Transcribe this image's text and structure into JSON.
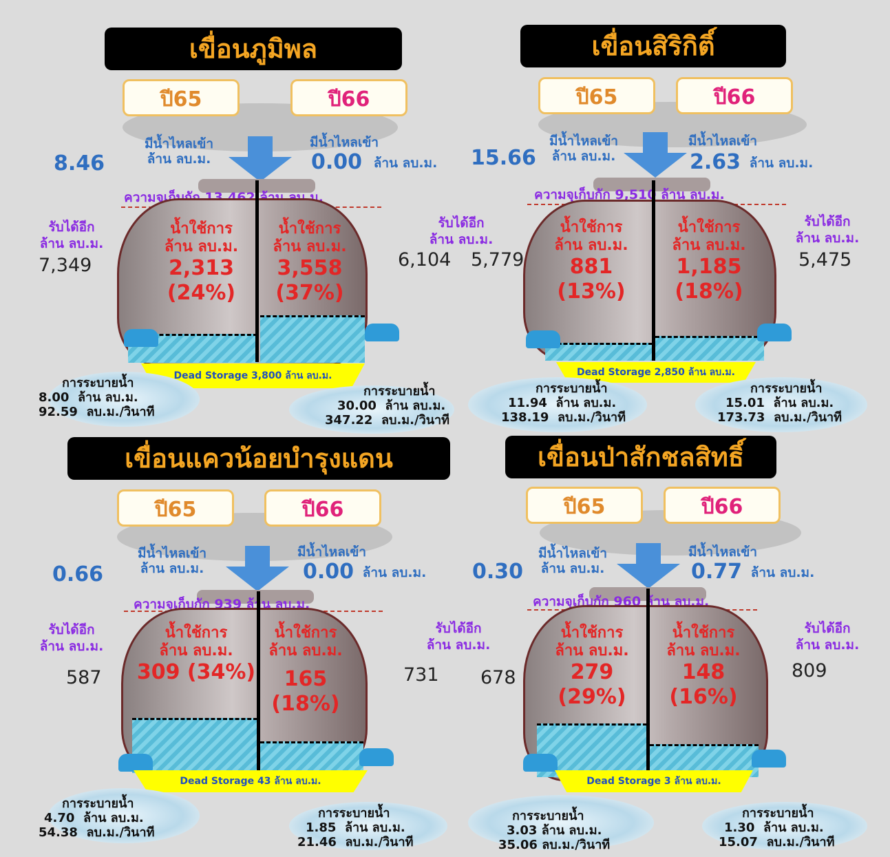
{
  "panels": [
    {
      "title": "เขื่อนภูมิพล",
      "year_left": "ปี65",
      "year_right": "ปี66",
      "inflow_label": "มีน้ำไหลเข้า",
      "unit": "ล้าน ลบ.ม.",
      "inflow_left": "8.46",
      "inflow_right": "0.00",
      "capacity_text": "ความจุเก็บกัก 13,462 ล้าน ลบ.ม.",
      "use_label": "น้ำใช้การ",
      "use_left_value": "2,313",
      "use_left_pct": "(24%)",
      "use_right_value": "3,558",
      "use_right_pct": "(37%)",
      "receive_label": "รับได้อีก",
      "receive_left": "7,349",
      "receive_right": "6,104",
      "dead_storage": "Dead Storage 3,800 ล้าน ลบ.ม.",
      "release_label": "การระบายน้ำ",
      "release_left_mcm": "8.00",
      "release_left_cms": "92.59",
      "release_right_mcm": "30.00",
      "release_right_cms": "347.22",
      "cms_unit": "ลบ.ม./วินาที"
    },
    {
      "title": "เขื่อนสิริกิติ์",
      "year_left": "ปี65",
      "year_right": "ปี66",
      "inflow_label": "มีน้ำไหลเข้า",
      "unit": "ล้าน ลบ.ม.",
      "inflow_left": "15.66",
      "inflow_right": "2.63",
      "capacity_text": "ความจุเก็บกัก 9,510 ล้าน ลบ.ม.",
      "use_label": "น้ำใช้การ",
      "use_left_value": "881 (13%)",
      "use_left_pct": "",
      "use_right_value": "1,185",
      "use_right_pct": "(18%)",
      "receive_label": "รับได้อีก",
      "receive_left": "5,779",
      "receive_right": "5,475",
      "dead_storage": "Dead Storage 2,850 ล้าน ลบ.ม.",
      "release_label": "การระบายน้ำ",
      "release_left_mcm": "11.94",
      "release_left_cms": "138.19",
      "release_right_mcm": "15.01",
      "release_right_cms": "173.73",
      "cms_unit": "ลบ.ม./วินาที"
    },
    {
      "title": "เขื่อนแควน้อยบำรุงแดน",
      "year_left": "ปี65",
      "year_right": "ปี66",
      "inflow_label": "มีน้ำไหลเข้า",
      "unit": "ล้าน ลบ.ม.",
      "inflow_left": "0.66",
      "inflow_right": "0.00",
      "capacity_text": "ความจุเก็บกัก 939 ล้าน ลบ.ม.",
      "use_label": "น้ำใช้การ",
      "use_left_value": "309 (34%)",
      "use_left_pct": "",
      "use_right_value": "165",
      "use_right_pct": "(18%)",
      "receive_label": "รับได้อีก",
      "receive_left": "587",
      "receive_right": "731",
      "dead_storage": "Dead Storage 43 ล้าน ลบ.ม.",
      "release_label": "การระบายน้ำ",
      "release_left_mcm": "4.70",
      "release_left_cms": "54.38",
      "release_right_mcm": "1.85",
      "release_right_cms": "21.46",
      "cms_unit": "ลบ.ม./วินาที"
    },
    {
      "title": "เขื่อนป่าสักชลสิทธิ์",
      "year_left": "ปี65",
      "year_right": "ปี66",
      "inflow_label": "มีน้ำไหลเข้า",
      "unit": "ล้าน ลบ.ม.",
      "inflow_left": "0.30",
      "inflow_right": "0.77",
      "capacity_text": "ความจุเก็บกัก 960 ล้าน ลบ.ม.",
      "use_label": "น้ำใช้การ",
      "use_left_value": "279",
      "use_left_pct": "(29%)",
      "use_right_value": "148",
      "use_right_pct": "(16%)",
      "receive_label": "รับได้อีก",
      "receive_left": "678",
      "receive_right": "809",
      "dead_storage": "Dead Storage 3 ล้าน ลบ.ม.",
      "release_label": "การระบายน้ำ",
      "release_left_mcm": "3.03",
      "release_left_cms": "35.06",
      "release_right_mcm": "1.30",
      "release_right_cms": "15.07",
      "cms_unit": "ลบ.ม./วินาที"
    }
  ],
  "colors": {
    "title_bg": "#000000",
    "title_text": "#f5a623",
    "inflow": "#2f6ec0",
    "use_text": "#e32626",
    "capacity_text": "#8a2be2",
    "dead_storage_fill": "#ffff00",
    "water": "#58bcd8"
  },
  "fill_levels": [
    {
      "left": 0.24,
      "right": 0.37
    },
    {
      "left": 0.13,
      "right": 0.18
    },
    {
      "left": 0.34,
      "right": 0.18
    },
    {
      "left": 0.29,
      "right": 0.16
    }
  ]
}
